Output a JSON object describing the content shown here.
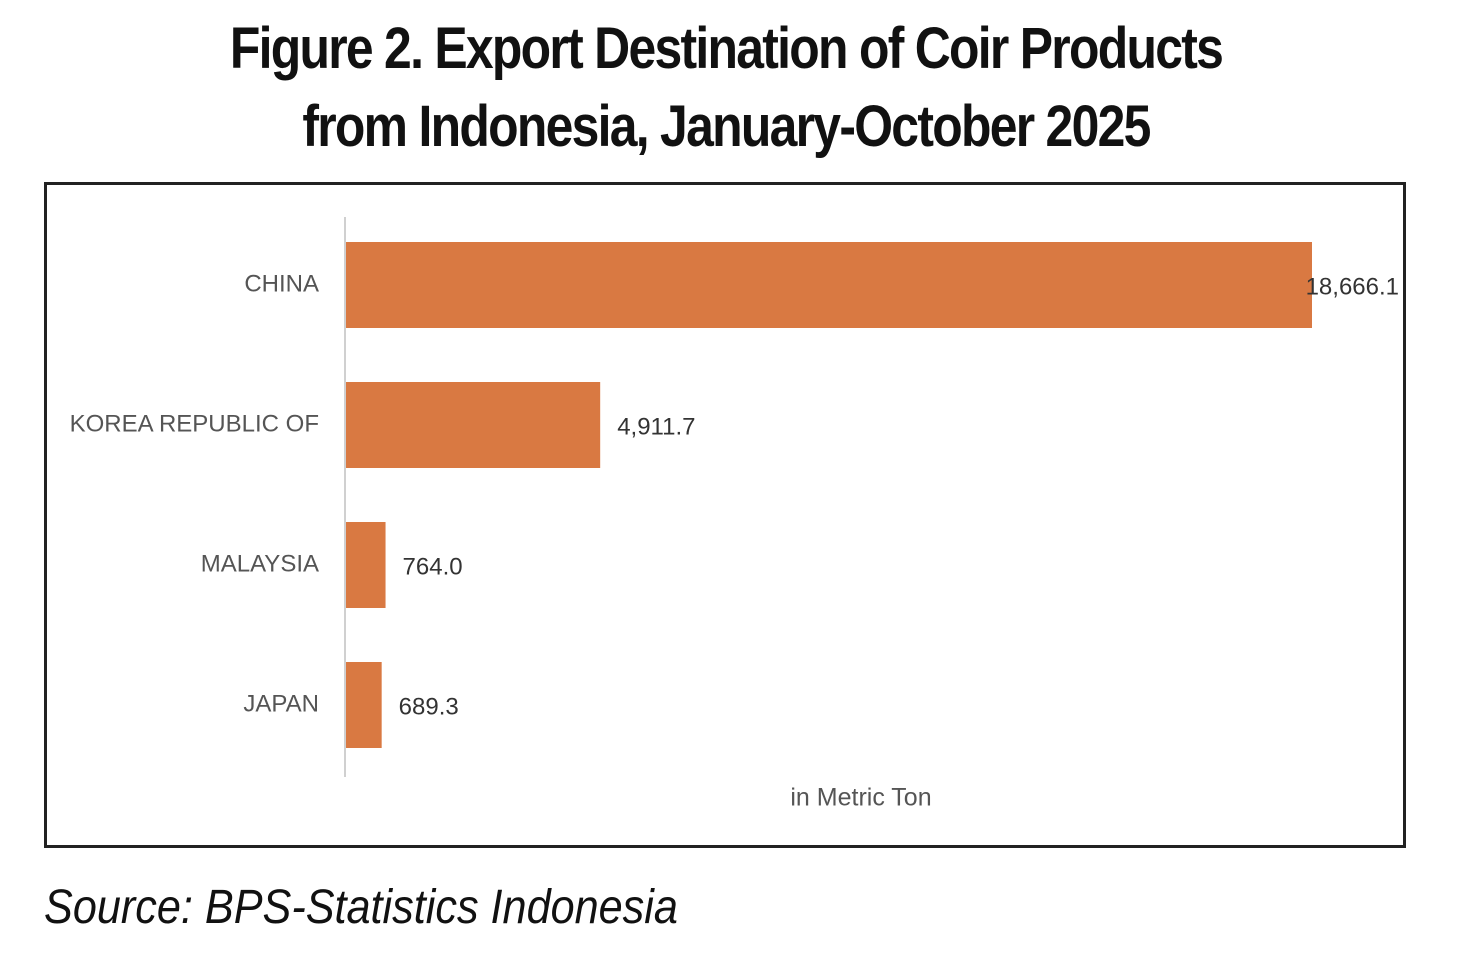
{
  "title_lines": [
    "Figure 2. Export Destination of Coir Products",
    "from Indonesia, January-October 2025"
  ],
  "source": "Source: BPS-Statistics Indonesia",
  "colors": {
    "bar": "#d97942",
    "axis": "#d0d0d0",
    "label": "#555555",
    "value": "#333333"
  },
  "chart_data": {
    "type": "bar",
    "orientation": "horizontal",
    "title": "Figure 2. Export Destination of Coir Products from Indonesia, January-October 2025",
    "categories": [
      "CHINA",
      "KOREA REPUBLIC OF",
      "MALAYSIA",
      "JAPAN"
    ],
    "values": [
      18666.1,
      4911.7,
      764.0,
      689.3
    ],
    "value_labels": [
      "18,666.1",
      "4,911.7",
      "764.0",
      "689.3"
    ],
    "xlabel": "in Metric Ton",
    "ylabel": "",
    "xlim": [
      0,
      18666.1
    ],
    "grid": false,
    "legend": "none"
  }
}
